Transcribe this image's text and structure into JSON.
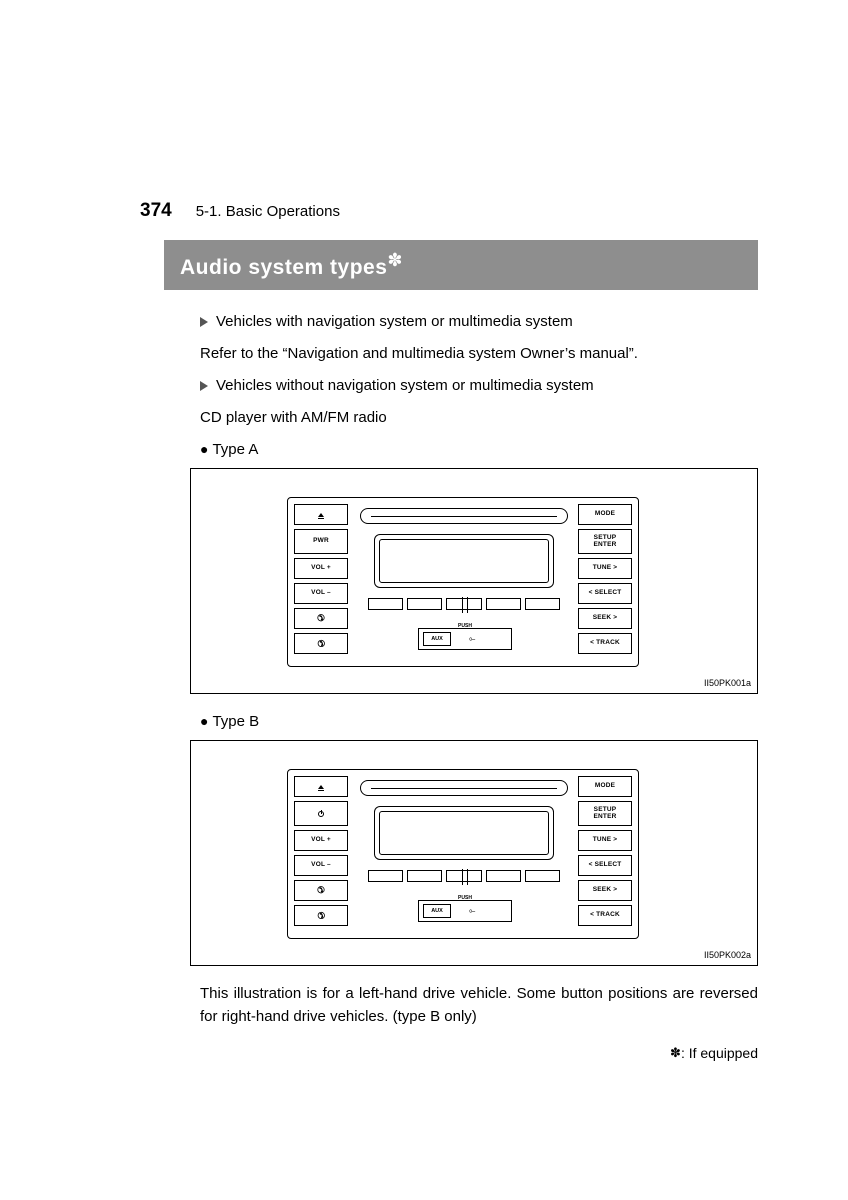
{
  "header": {
    "page_number": "374",
    "section": "5-1. Basic Operations"
  },
  "title": {
    "text": "Audio system types",
    "asterisk": "✽"
  },
  "body": {
    "bullet1": "Vehicles with navigation system or multimedia system",
    "refer": "Refer to the “Navigation and multimedia system Owner’s manual”.",
    "bullet2": "Vehicles without navigation system or multimedia system",
    "cd_line": "CD player with AM/FM radio",
    "type_a": "Type A",
    "type_b": "Type B"
  },
  "radio_buttons": {
    "left": {
      "eject": "",
      "pwr_a": "PWR",
      "pwr_b": "",
      "vol_up": "VOL +",
      "vol_down": "VOL –",
      "phone": "",
      "hangup": ""
    },
    "right": {
      "mode": "MODE",
      "setup1": "SETUP",
      "setup2": "ENTER",
      "tune": "TUNE >",
      "select": "< SELECT",
      "seek": "SEEK >",
      "track": "< TRACK"
    },
    "aux": {
      "push": "PUSH",
      "aux": "AUX",
      "usb": "⟜"
    }
  },
  "figures": {
    "a_id": "II50PK001a",
    "b_id": "II50PK002a"
  },
  "footer": {
    "note": "This illustration is for a left-hand drive vehicle. Some button positions are reversed for right-hand drive vehicles. (type B only)",
    "equipped_ast": "✽",
    "equipped": ": If equipped"
  },
  "colors": {
    "title_bg": "#8e8e8e",
    "title_fg": "#ffffff",
    "text": "#000000"
  }
}
